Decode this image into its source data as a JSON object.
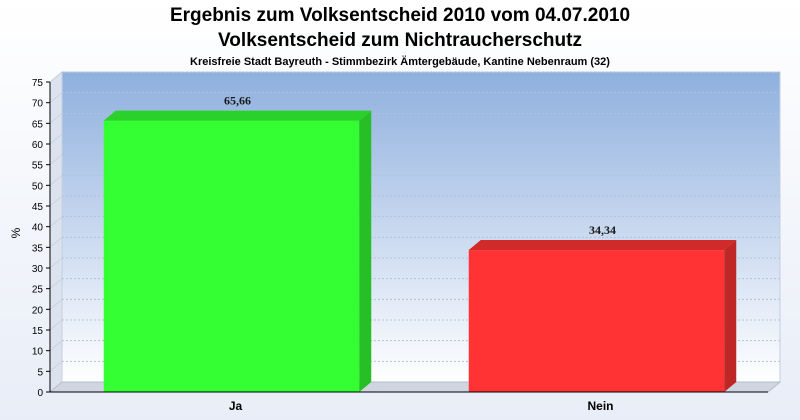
{
  "chart_data": {
    "type": "bar",
    "title": "Ergebnis zum Volksentscheid 2010 vom 04.07.2010",
    "subtitle": "Volksentscheid zum Nichtraucherschutz",
    "caption": "Kreisfreie Stadt Bayreuth - Stimmbezirk Ämtergebäude, Kantine Nebenraum (32)",
    "ylabel": "%",
    "xlabel": "",
    "ylim": [
      0,
      75
    ],
    "yticks": [
      0,
      5,
      10,
      15,
      20,
      25,
      30,
      35,
      40,
      45,
      50,
      55,
      60,
      65,
      70,
      75
    ],
    "categories": [
      "Ja",
      "Nein"
    ],
    "values": [
      65.66,
      34.34
    ],
    "value_labels": [
      "65,66",
      "34,34"
    ],
    "colors": [
      "#33ff33",
      "#ff3333"
    ],
    "grid": true,
    "legend": "none"
  }
}
